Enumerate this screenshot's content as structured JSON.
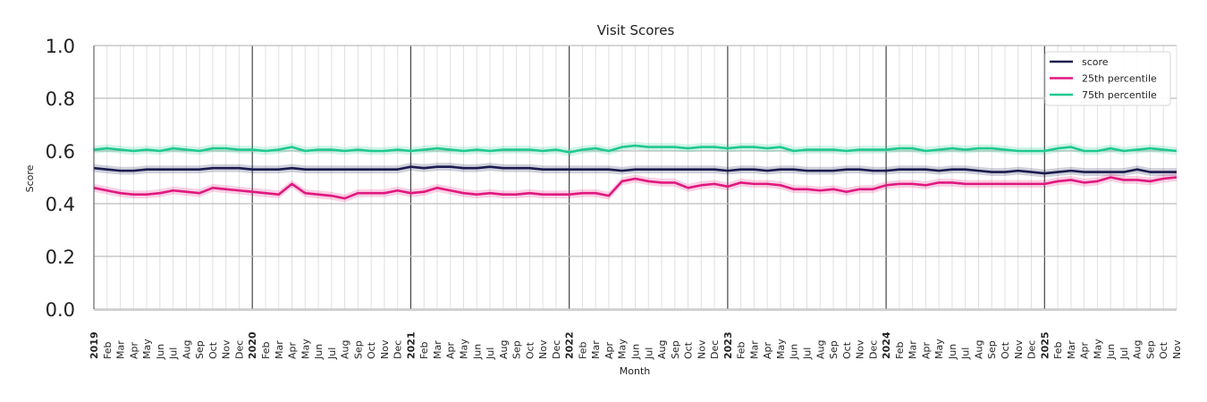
{
  "chart_data": {
    "type": "line",
    "title": "Visit Scores",
    "xlabel": "Month",
    "ylabel": "Score",
    "ylim": [
      0,
      1
    ],
    "yticks": [
      "0.0",
      "0.2",
      "0.4",
      "0.6",
      "0.8",
      "1.0"
    ],
    "grid": true,
    "legend_position": "top-right",
    "start": "2019-01",
    "end": "2025-11",
    "month_labels": [
      "Jan",
      "Feb",
      "Mar",
      "Apr",
      "May",
      "Jun",
      "Jul",
      "Aug",
      "Sep",
      "Oct",
      "Nov",
      "Dec"
    ],
    "ci_halfwidth": 0.015,
    "series": [
      {
        "name": "score",
        "color": "#1b1b4f",
        "values": [
          0.535,
          0.53,
          0.525,
          0.525,
          0.53,
          0.53,
          0.53,
          0.53,
          0.53,
          0.535,
          0.535,
          0.535,
          0.53,
          0.53,
          0.53,
          0.535,
          0.53,
          0.53,
          0.53,
          0.53,
          0.53,
          0.53,
          0.53,
          0.53,
          0.54,
          0.535,
          0.54,
          0.54,
          0.535,
          0.535,
          0.54,
          0.535,
          0.535,
          0.535,
          0.53,
          0.53,
          0.53,
          0.53,
          0.53,
          0.53,
          0.525,
          0.53,
          0.53,
          0.53,
          0.53,
          0.53,
          0.53,
          0.53,
          0.525,
          0.53,
          0.53,
          0.525,
          0.53,
          0.53,
          0.525,
          0.525,
          0.525,
          0.53,
          0.53,
          0.525,
          0.525,
          0.53,
          0.53,
          0.53,
          0.525,
          0.53,
          0.53,
          0.525,
          0.52,
          0.52,
          0.525,
          0.52,
          0.515,
          0.52,
          0.525,
          0.52,
          0.52,
          0.52,
          0.52,
          0.53,
          0.52,
          0.52,
          0.52
        ]
      },
      {
        "name": "25th percentile",
        "color": "#e0187f",
        "values": [
          0.46,
          0.45,
          0.44,
          0.435,
          0.435,
          0.44,
          0.45,
          0.445,
          0.44,
          0.46,
          0.455,
          0.45,
          0.445,
          0.44,
          0.435,
          0.475,
          0.44,
          0.435,
          0.43,
          0.42,
          0.44,
          0.44,
          0.44,
          0.45,
          0.44,
          0.445,
          0.46,
          0.45,
          0.44,
          0.435,
          0.44,
          0.435,
          0.435,
          0.44,
          0.435,
          0.435,
          0.435,
          0.44,
          0.44,
          0.43,
          0.485,
          0.495,
          0.485,
          0.48,
          0.48,
          0.46,
          0.47,
          0.475,
          0.465,
          0.48,
          0.475,
          0.475,
          0.47,
          0.455,
          0.455,
          0.45,
          0.455,
          0.445,
          0.455,
          0.455,
          0.47,
          0.475,
          0.475,
          0.47,
          0.48,
          0.48,
          0.475,
          0.475,
          0.475,
          0.475,
          0.475,
          0.475,
          0.475,
          0.485,
          0.49,
          0.48,
          0.485,
          0.5,
          0.49,
          0.49,
          0.485,
          0.495,
          0.5
        ]
      },
      {
        "name": "75th percentile",
        "color": "#1fc98e",
        "values": [
          0.605,
          0.61,
          0.605,
          0.6,
          0.605,
          0.6,
          0.61,
          0.605,
          0.6,
          0.61,
          0.61,
          0.605,
          0.605,
          0.6,
          0.605,
          0.615,
          0.6,
          0.605,
          0.605,
          0.6,
          0.605,
          0.6,
          0.6,
          0.605,
          0.6,
          0.605,
          0.61,
          0.605,
          0.6,
          0.605,
          0.6,
          0.605,
          0.605,
          0.605,
          0.6,
          0.605,
          0.595,
          0.605,
          0.61,
          0.6,
          0.615,
          0.62,
          0.615,
          0.615,
          0.615,
          0.61,
          0.615,
          0.615,
          0.61,
          0.615,
          0.615,
          0.61,
          0.615,
          0.6,
          0.605,
          0.605,
          0.605,
          0.6,
          0.605,
          0.605,
          0.605,
          0.61,
          0.61,
          0.6,
          0.605,
          0.61,
          0.605,
          0.61,
          0.61,
          0.605,
          0.6,
          0.6,
          0.6,
          0.61,
          0.615,
          0.6,
          0.6,
          0.61,
          0.6,
          0.605,
          0.61,
          0.605,
          0.6
        ]
      }
    ]
  }
}
